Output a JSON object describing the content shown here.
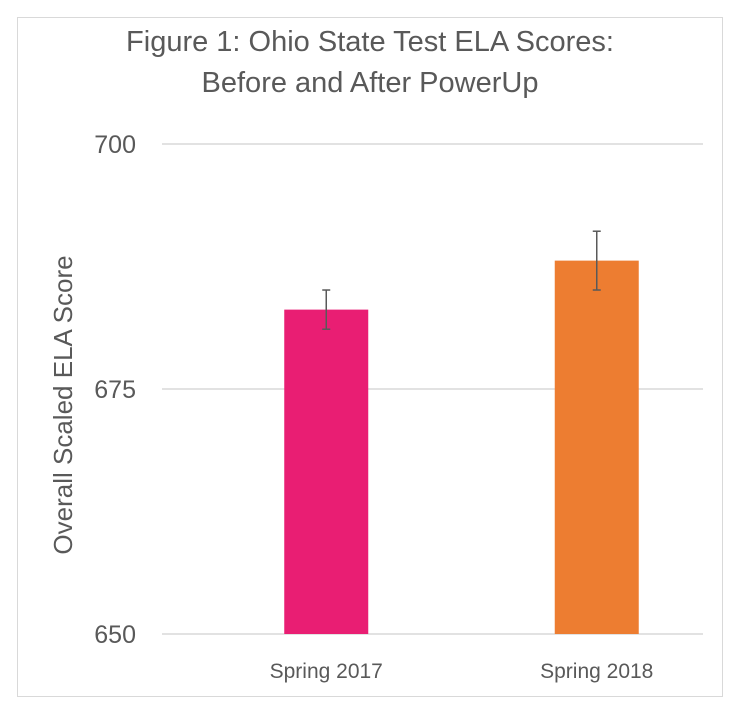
{
  "chart_data": {
    "type": "bar",
    "title": "Figure 1: Ohio State Test ELA Scores: Before and After PowerUp",
    "title_lines": [
      "Figure 1: Ohio State Test ELA Scores:",
      "Before and After PowerUp"
    ],
    "xlabel": "",
    "ylabel": "Overall Scaled ELA Score",
    "ylim": [
      650,
      700
    ],
    "yticks": [
      650,
      675,
      700
    ],
    "grid": true,
    "legend": "none",
    "categories": [
      "Spring 2017",
      "Spring 2018"
    ],
    "values": [
      683.1,
      688.1
    ],
    "error": [
      2.0,
      3.0
    ],
    "colors": [
      "#e91e73",
      "#ed7d31"
    ]
  }
}
